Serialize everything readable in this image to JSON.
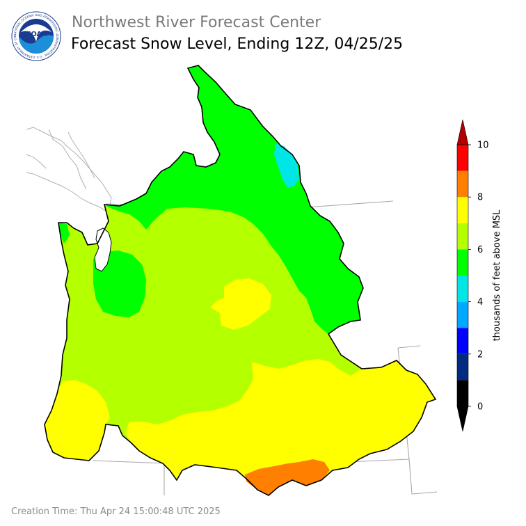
{
  "header": {
    "org_title": "Northwest River Forecast Center",
    "product_title": "Forecast Snow Level, Ending 12Z, 04/25/25",
    "logo_text": "NOAA",
    "logo_ring_text": "NATIONAL OCEANIC AND ATMOSPHERIC ADMINISTRATION · U.S. DEPARTMENT OF COMMERCE"
  },
  "footer": {
    "creation_time": "Creation Time: Thu Apr 24 15:00:48 UTC 2025"
  },
  "legend": {
    "title": "thousands of feet above MSL",
    "tick_labels": [
      "0",
      "2",
      "4",
      "6",
      "8",
      "10"
    ],
    "bins": [
      {
        "range": [
          0,
          1
        ],
        "color": "#000000"
      },
      {
        "range": [
          1,
          2
        ],
        "color": "#002b80"
      },
      {
        "range": [
          2,
          3
        ],
        "color": "#0000ff"
      },
      {
        "range": [
          3,
          4
        ],
        "color": "#00a8ff"
      },
      {
        "range": [
          4,
          5
        ],
        "color": "#00e6e6"
      },
      {
        "range": [
          5,
          6
        ],
        "color": "#00ff00"
      },
      {
        "range": [
          6,
          7
        ],
        "color": "#b4ff00"
      },
      {
        "range": [
          7,
          8
        ],
        "color": "#ffff00"
      },
      {
        "range": [
          8,
          9
        ],
        "color": "#ff8000"
      },
      {
        "range": [
          9,
          10
        ],
        "color": "#ff0000"
      }
    ],
    "under_color": "#000000",
    "over_color": "#b20000"
  },
  "map": {
    "region": "Pacific Northwest",
    "palette": {
      "level_4_5": "#00e6e6",
      "level_5_6": "#00ff00",
      "level_6_7": "#b4ff00",
      "level_7_8": "#ffff00",
      "level_8_9": "#ff8000",
      "boundary": "#000000",
      "state_lines": "#aaaaaa"
    }
  }
}
